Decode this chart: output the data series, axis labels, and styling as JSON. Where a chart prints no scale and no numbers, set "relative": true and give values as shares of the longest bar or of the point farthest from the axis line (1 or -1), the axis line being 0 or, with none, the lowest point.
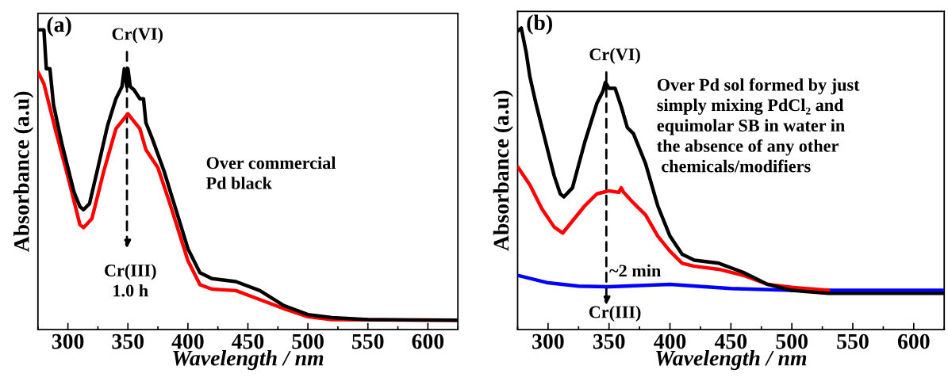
{
  "chart_data": [
    {
      "type": "line",
      "relative": true,
      "xlabel": "Wavelength / nm",
      "ylabel": "Absorbance (a.u)",
      "xlim": [
        275,
        625
      ],
      "xticks": [
        300,
        350,
        400,
        450,
        500,
        550,
        600
      ],
      "tick_labels": "x",
      "grid": false,
      "annotations": [
        "(a)",
        "Cr(VI)",
        "Cr(III)\n1.0 h",
        "Over commercial\nPd black"
      ],
      "series": [
        {
          "color": "#000000",
          "x": [
            275,
            280,
            282,
            285,
            288,
            295,
            300,
            305,
            310,
            313,
            318,
            325,
            333,
            340,
            345,
            347,
            349,
            350,
            352,
            355,
            360,
            363,
            365,
            370,
            380,
            390,
            400,
            410,
            420,
            440,
            460,
            480,
            500,
            520,
            550,
            625
          ],
          "values": [
            1.0,
            1.0,
            0.87,
            0.87,
            0.75,
            0.62,
            0.54,
            0.46,
            0.41,
            0.4,
            0.42,
            0.54,
            0.68,
            0.77,
            0.81,
            0.87,
            0.81,
            0.87,
            0.81,
            0.8,
            0.77,
            0.77,
            0.69,
            0.64,
            0.53,
            0.4,
            0.27,
            0.19,
            0.17,
            0.16,
            0.13,
            0.08,
            0.05,
            0.04,
            0.033,
            0.031
          ]
        },
        {
          "color": "#ff0000",
          "x": [
            275,
            280,
            285,
            290,
            300,
            310,
            313,
            320,
            330,
            340,
            350,
            360,
            365,
            375,
            385,
            400,
            410,
            420,
            440,
            460,
            480,
            500,
            520,
            625
          ],
          "values": [
            0.86,
            0.82,
            0.74,
            0.66,
            0.51,
            0.35,
            0.34,
            0.37,
            0.53,
            0.67,
            0.72,
            0.67,
            0.6,
            0.54,
            0.42,
            0.23,
            0.15,
            0.135,
            0.13,
            0.1,
            0.07,
            0.043,
            0.033,
            0.031
          ]
        }
      ]
    },
    {
      "type": "line",
      "relative": true,
      "xlabel": "Wavelength / nm",
      "ylabel": "Absorbance (a.u)",
      "xlim": [
        275,
        625
      ],
      "xticks": [
        300,
        350,
        400,
        450,
        500,
        550,
        600
      ],
      "tick_labels": "x",
      "grid": false,
      "annotations": [
        "(b)",
        "Cr(VI)",
        "Cr(III)",
        "~2 min",
        "Over Pd sol formed by just\nsimply mixing PdCl₂ and\nequimolar SB in water in\nthe absence of any other\n chemicals/modifiers"
      ],
      "series": [
        {
          "color": "#000000",
          "x": [
            275,
            278,
            282,
            285,
            290,
            295,
            300,
            305,
            310,
            313,
            320,
            330,
            340,
            345,
            347,
            350,
            355,
            360,
            365,
            370,
            380,
            390,
            400,
            410,
            420,
            440,
            460,
            480,
            500,
            530,
            625
          ],
          "values": [
            0.99,
            1.0,
            0.92,
            0.84,
            0.75,
            0.67,
            0.59,
            0.51,
            0.45,
            0.44,
            0.47,
            0.62,
            0.75,
            0.79,
            0.82,
            0.8,
            0.8,
            0.74,
            0.67,
            0.65,
            0.55,
            0.41,
            0.31,
            0.25,
            0.23,
            0.22,
            0.19,
            0.15,
            0.13,
            0.12,
            0.12
          ]
        },
        {
          "color": "#ff0000",
          "x": [
            275,
            285,
            295,
            305,
            312,
            320,
            330,
            340,
            350,
            358,
            360,
            362,
            370,
            380,
            390,
            400,
            410,
            420,
            440,
            460,
            480,
            500,
            530
          ],
          "values": [
            0.54,
            0.48,
            0.4,
            0.34,
            0.32,
            0.36,
            0.41,
            0.45,
            0.46,
            0.455,
            0.47,
            0.455,
            0.42,
            0.38,
            0.31,
            0.26,
            0.22,
            0.21,
            0.2,
            0.18,
            0.15,
            0.14,
            0.13
          ]
        },
        {
          "color": "#0000ff",
          "x": [
            275,
            300,
            325,
            350,
            400,
            450,
            500,
            550,
            625
          ],
          "values": [
            0.18,
            0.155,
            0.144,
            0.142,
            0.15,
            0.136,
            0.13,
            0.13,
            0.13
          ]
        }
      ]
    }
  ]
}
